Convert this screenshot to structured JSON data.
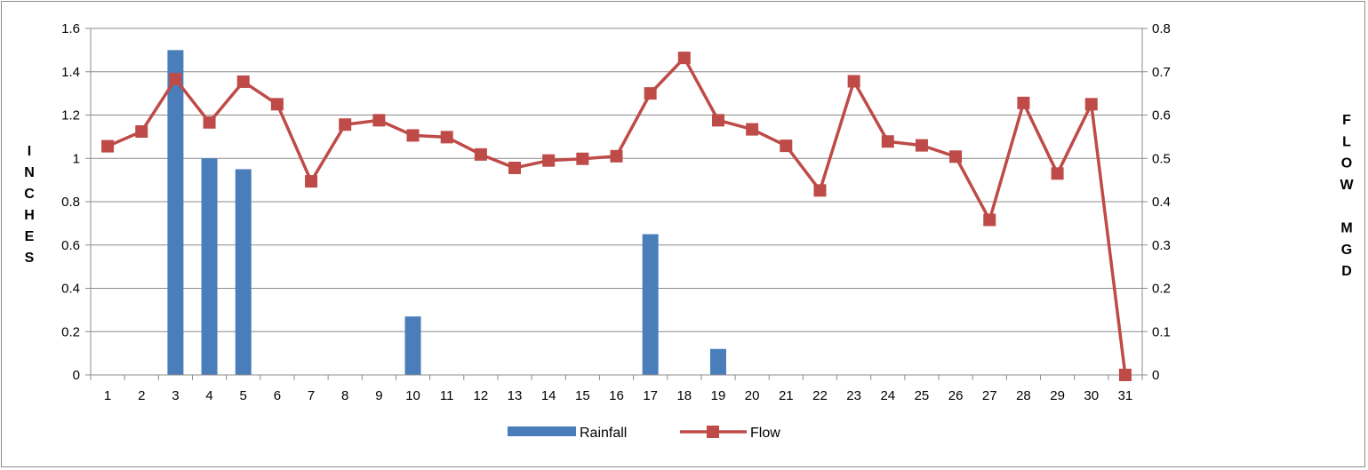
{
  "chart_data": {
    "type": "bar+line",
    "categories": [
      "1",
      "2",
      "3",
      "4",
      "5",
      "6",
      "7",
      "8",
      "9",
      "10",
      "11",
      "12",
      "13",
      "14",
      "15",
      "16",
      "17",
      "18",
      "19",
      "20",
      "21",
      "22",
      "23",
      "24",
      "25",
      "26",
      "27",
      "28",
      "29",
      "30",
      "31"
    ],
    "series": [
      {
        "name": "Rainfall",
        "type": "bar",
        "axis": "left",
        "color": "#4a7ebb",
        "values": [
          0,
          0,
          1.5,
          1.0,
          0.95,
          0,
          0,
          0,
          0,
          0.27,
          0,
          0,
          0,
          0,
          0,
          0,
          0.65,
          0,
          0.12,
          0,
          0,
          0,
          0,
          0,
          0,
          0,
          0,
          0,
          0,
          0,
          0
        ]
      },
      {
        "name": "Flow",
        "type": "line",
        "axis": "right",
        "color": "#be4b48",
        "marker": "square",
        "values": [
          0.528,
          0.562,
          0.683,
          0.583,
          0.677,
          0.625,
          0.447,
          0.578,
          0.588,
          0.553,
          0.549,
          0.509,
          0.478,
          0.495,
          0.499,
          0.505,
          0.65,
          0.732,
          0.588,
          0.567,
          0.529,
          0.426,
          0.678,
          0.539,
          0.53,
          0.504,
          0.358,
          0.628,
          0.465,
          0.625,
          0.0
        ]
      }
    ],
    "y_left": {
      "label_letters": [
        "I",
        "N",
        "C",
        "H",
        "E",
        "S"
      ],
      "ylim": [
        0,
        1.6
      ],
      "ticks": [
        "0",
        "0.2",
        "0.4",
        "0.6",
        "0.8",
        "1",
        "1.2",
        "1.4",
        "1.6"
      ]
    },
    "y_right": {
      "label_letters": [
        "F",
        "L",
        "O",
        "W",
        "",
        "M",
        "G",
        "D"
      ],
      "ylim": [
        0,
        0.8
      ],
      "ticks": [
        "0",
        "0.1",
        "0.2",
        "0.3",
        "0.4",
        "0.5",
        "0.6",
        "0.7",
        "0.8"
      ]
    },
    "grid": "horizontal",
    "legend": {
      "position": "bottom",
      "entries": [
        {
          "label": "Rainfall",
          "color": "#4a7ebb",
          "symbol": "bar"
        },
        {
          "label": "Flow",
          "color": "#be4b48",
          "symbol": "line-square"
        }
      ]
    }
  }
}
